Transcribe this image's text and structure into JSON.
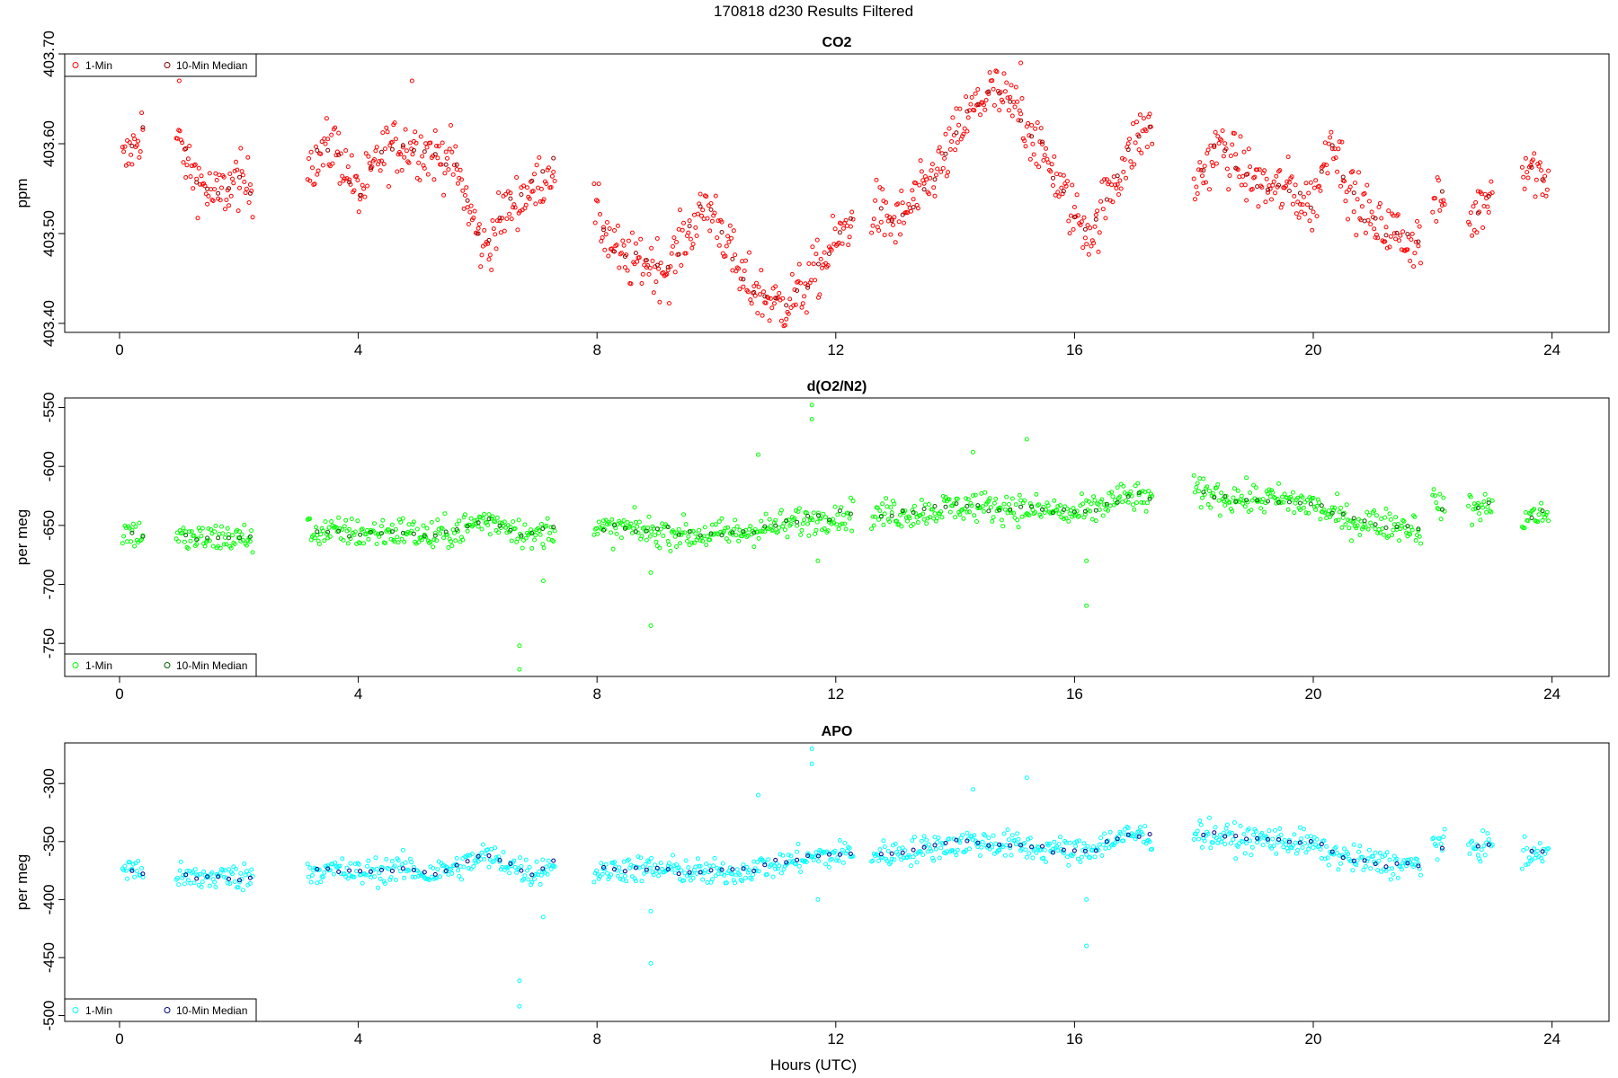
{
  "page_title": "170818   d230   Results Filtered",
  "x_axis_label": "Hours (UTC)",
  "legend_labels": {
    "one_min": "1-Min",
    "median": "10-Min Median"
  },
  "chart_data": [
    {
      "type": "scatter",
      "title": "CO2",
      "ylabel": "ppm",
      "xlim": [
        0,
        24
      ],
      "ylim": [
        403.39,
        403.7
      ],
      "x_ticks": [
        0,
        4,
        8,
        12,
        16,
        20,
        24
      ],
      "x_tick_labels": [
        "0",
        "4",
        "8",
        "12",
        "16",
        "20",
        "24"
      ],
      "y_ticks": [
        403.4,
        403.5,
        403.6,
        403.7
      ],
      "y_tick_labels": [
        "403.40",
        "403.50",
        "403.60",
        "403.70"
      ],
      "legend_position": "top-left",
      "colors": {
        "one_min": "#ff0000",
        "median": "#8b0000"
      },
      "noise": 0.022,
      "outliers": [
        [
          1.0,
          403.67
        ],
        [
          4.9,
          403.67
        ],
        [
          15.1,
          403.69
        ]
      ],
      "series": [
        {
          "name": "1-Min",
          "x": [
            0.1,
            0.4,
            1.0,
            1.3,
            1.6,
            2.0,
            2.2,
            3.2,
            3.6,
            4.0,
            4.4,
            4.8,
            5.2,
            5.6,
            5.9,
            6.1,
            6.5,
            6.9,
            7.3,
            8.0,
            8.4,
            8.8,
            9.2,
            9.5,
            9.8,
            10.0,
            10.4,
            10.8,
            11.1,
            11.5,
            11.9,
            12.2,
            12.6,
            13.0,
            13.4,
            13.8,
            14.2,
            14.6,
            15.0,
            15.4,
            15.7,
            16.0,
            16.3,
            16.6,
            17.0,
            17.2,
            18.0,
            18.4,
            18.8,
            19.2,
            19.6,
            20.0,
            20.3,
            20.6,
            21.0,
            21.4,
            21.8,
            22.0,
            22.2,
            22.6,
            23.0,
            23.4,
            23.9
          ],
          "values": [
            403.58,
            403.62,
            403.6,
            403.56,
            403.54,
            403.56,
            403.55,
            403.58,
            403.6,
            403.54,
            403.59,
            403.6,
            403.59,
            403.58,
            403.52,
            403.48,
            403.53,
            403.55,
            403.58,
            403.52,
            403.47,
            403.47,
            403.46,
            403.5,
            403.53,
            403.52,
            403.45,
            403.43,
            403.42,
            403.44,
            403.48,
            403.51,
            403.53,
            403.51,
            403.54,
            403.58,
            403.63,
            403.66,
            403.64,
            403.6,
            403.56,
            403.52,
            403.5,
            403.55,
            403.6,
            403.62,
            403.55,
            403.6,
            403.57,
            403.55,
            403.55,
            403.53,
            403.61,
            403.55,
            403.51,
            403.5,
            403.49,
            403.53,
            403.54,
            403.51,
            403.55,
            403.59,
            403.56
          ]
        },
        {
          "name": "10-Min Median"
        }
      ]
    },
    {
      "type": "scatter",
      "title": "d(O2/N2)",
      "ylabel": "per meg",
      "xlim": [
        0,
        24
      ],
      "ylim": [
        -778,
        -542
      ],
      "x_ticks": [
        0,
        4,
        8,
        12,
        16,
        20,
        24
      ],
      "x_tick_labels": [
        "0",
        "4",
        "8",
        "12",
        "16",
        "20",
        "24"
      ],
      "y_ticks": [
        -750,
        -700,
        -650,
        -600,
        -550
      ],
      "y_tick_labels": [
        "-750",
        "-700",
        "-650",
        "-600",
        "-550"
      ],
      "legend_position": "bottom-left",
      "colors": {
        "one_min": "#00ff00",
        "median": "#006400"
      },
      "noise": 9,
      "outliers": [
        [
          6.7,
          -752
        ],
        [
          6.7,
          -772
        ],
        [
          7.1,
          -697
        ],
        [
          8.9,
          -735
        ],
        [
          8.9,
          -690
        ],
        [
          11.6,
          -548
        ],
        [
          11.6,
          -560
        ],
        [
          11.7,
          -680
        ],
        [
          16.2,
          -718
        ],
        [
          16.2,
          -680
        ],
        [
          10.7,
          -590
        ],
        [
          14.3,
          -588
        ],
        [
          15.2,
          -577
        ]
      ],
      "series": [
        {
          "name": "1-Min",
          "x": [
            0.1,
            0.4,
            1.0,
            1.3,
            1.6,
            2.0,
            2.2,
            3.2,
            3.6,
            4.0,
            4.4,
            4.8,
            5.2,
            5.6,
            5.9,
            6.1,
            6.5,
            6.9,
            7.3,
            8.0,
            8.4,
            8.8,
            9.2,
            9.5,
            9.8,
            10.0,
            10.4,
            10.8,
            11.1,
            11.5,
            11.9,
            12.2,
            12.6,
            13.0,
            13.4,
            13.8,
            14.2,
            14.6,
            15.0,
            15.4,
            15.7,
            16.0,
            16.3,
            16.6,
            17.0,
            17.2,
            18.0,
            18.4,
            18.8,
            19.2,
            19.6,
            20.0,
            20.3,
            20.6,
            21.0,
            21.4,
            21.8,
            22.0,
            22.2,
            22.6,
            23.0,
            23.4,
            23.9
          ],
          "values": [
            -655,
            -658,
            -660,
            -662,
            -660,
            -661,
            -660,
            -655,
            -656,
            -657,
            -656,
            -655,
            -660,
            -655,
            -650,
            -645,
            -650,
            -660,
            -650,
            -655,
            -652,
            -655,
            -655,
            -657,
            -658,
            -658,
            -656,
            -652,
            -650,
            -645,
            -642,
            -640,
            -642,
            -640,
            -638,
            -635,
            -633,
            -635,
            -635,
            -637,
            -638,
            -640,
            -638,
            -630,
            -625,
            -627,
            -622,
            -625,
            -628,
            -628,
            -630,
            -632,
            -640,
            -645,
            -648,
            -650,
            -652,
            -630,
            -636,
            -636,
            -633,
            -645,
            -640
          ]
        },
        {
          "name": "10-Min Median"
        }
      ]
    },
    {
      "type": "scatter",
      "title": "APO",
      "ylabel": "per meg",
      "xlim": [
        0,
        24
      ],
      "ylim": [
        -505,
        -265
      ],
      "x_ticks": [
        0,
        4,
        8,
        12,
        16,
        20,
        24
      ],
      "x_tick_labels": [
        "0",
        "4",
        "8",
        "12",
        "16",
        "20",
        "24"
      ],
      "y_ticks": [
        -500,
        -450,
        -400,
        -350,
        -300
      ],
      "y_tick_labels": [
        "-500",
        "-450",
        "-400",
        "-350",
        "-300"
      ],
      "legend_position": "bottom-left",
      "colors": {
        "one_min": "#00ffff",
        "median": "#00008b"
      },
      "noise": 8,
      "outliers": [
        [
          6.7,
          -470
        ],
        [
          6.7,
          -492
        ],
        [
          7.1,
          -415
        ],
        [
          8.9,
          -455
        ],
        [
          8.9,
          -410
        ],
        [
          11.6,
          -270
        ],
        [
          11.6,
          -283
        ],
        [
          11.7,
          -400
        ],
        [
          16.2,
          -440
        ],
        [
          16.2,
          -400
        ],
        [
          10.7,
          -310
        ],
        [
          14.3,
          -305
        ],
        [
          15.2,
          -295
        ]
      ],
      "series": [
        {
          "name": "1-Min",
          "x": [
            0.1,
            0.4,
            1.0,
            1.3,
            1.6,
            2.0,
            2.2,
            3.2,
            3.6,
            4.0,
            4.4,
            4.8,
            5.2,
            5.6,
            5.9,
            6.1,
            6.5,
            6.9,
            7.3,
            8.0,
            8.4,
            8.8,
            9.2,
            9.5,
            9.8,
            10.0,
            10.4,
            10.8,
            11.1,
            11.5,
            11.9,
            12.2,
            12.6,
            13.0,
            13.4,
            13.8,
            14.2,
            14.6,
            15.0,
            15.4,
            15.7,
            16.0,
            16.3,
            16.6,
            17.0,
            17.2,
            18.0,
            18.4,
            18.8,
            19.2,
            19.6,
            20.0,
            20.3,
            20.6,
            21.0,
            21.4,
            21.8,
            22.0,
            22.2,
            22.6,
            23.0,
            23.4,
            23.9
          ],
          "values": [
            -373,
            -376,
            -380,
            -382,
            -380,
            -381,
            -380,
            -374,
            -375,
            -377,
            -375,
            -373,
            -378,
            -373,
            -367,
            -362,
            -368,
            -378,
            -368,
            -376,
            -373,
            -374,
            -374,
            -376,
            -377,
            -377,
            -375,
            -371,
            -369,
            -364,
            -362,
            -360,
            -362,
            -360,
            -357,
            -353,
            -350,
            -352,
            -353,
            -356,
            -357,
            -359,
            -357,
            -349,
            -344,
            -346,
            -342,
            -345,
            -348,
            -348,
            -350,
            -352,
            -360,
            -365,
            -368,
            -370,
            -370,
            -350,
            -356,
            -356,
            -352,
            -365,
            -358
          ]
        },
        {
          "name": "10-Min Median"
        }
      ]
    }
  ]
}
